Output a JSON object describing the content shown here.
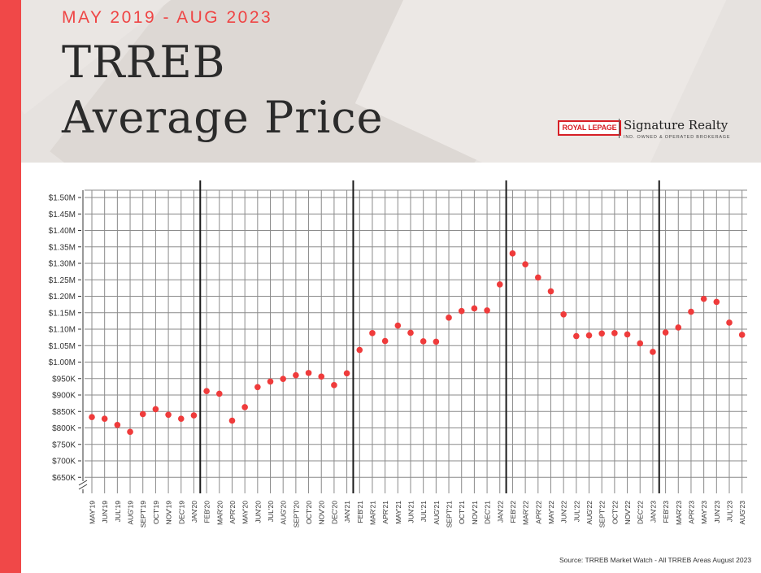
{
  "header": {
    "subtitle": "MAY 2019 - AUG 2023",
    "title_line1": "TRREB",
    "title_line2": "Average Price",
    "accent_color": "#ef4444"
  },
  "logo": {
    "brand_box": "ROYAL LEPAGE",
    "name": "Signature Realty",
    "tagline": "IND. OWNED & OPERATED BROKERAGE"
  },
  "source": "Source: TRREB Market Watch - All TRREB Areas August 2023",
  "chart_data": {
    "type": "scatter",
    "title": "TRREB Average Price",
    "subtitle": "MAY 2019 - AUG 2023",
    "y_ticks": [
      "$1.50M",
      "$1.45M",
      "$1.40M",
      "$1.35M",
      "$1.30M",
      "$1.25M",
      "$1.20M",
      "$1.15M",
      "$1.10M",
      "$1.05M",
      "$1.00M",
      "$950K",
      "$900K",
      "$850K",
      "$800K",
      "$750K",
      "$700K",
      "$650K"
    ],
    "ylim": [
      650000,
      1500000
    ],
    "axis_break": true,
    "grid": true,
    "point_color": "#ef3b3b",
    "year_dividers_after": [
      "JAN'20",
      "JAN'21",
      "JAN'22",
      "JAN'23"
    ],
    "categories": [
      "MAY'19",
      "JUN'19",
      "JUL'19",
      "AUG'19",
      "SEPT'19",
      "OCT'19",
      "NOV'19",
      "DEC'19",
      "JAN'20",
      "FEB'20",
      "MAR'20",
      "APR'20",
      "MAY'20",
      "JUN'20",
      "JUL'20",
      "AUG'20",
      "SEPT'20",
      "OCT'20",
      "NOV'20",
      "DEC'20",
      "JAN'21",
      "FEB'21",
      "MAR'21",
      "APR'21",
      "MAY'21",
      "JUN'21",
      "JUL'21",
      "AUG'21",
      "SEPT'21",
      "OCT'21",
      "NOV'21",
      "DEC'21",
      "JAN'22",
      "FEB'22",
      "MAR'22",
      "APR'22",
      "MAY'22",
      "JUN'22",
      "JUL'22",
      "AUG'22",
      "SEPT'22",
      "OCT'22",
      "NOV'22",
      "DEC'22",
      "JAN'23",
      "FEB'23",
      "MAR'23",
      "APR'23",
      "MAY'23",
      "JUN'23",
      "JUL'23",
      "AUG'23"
    ],
    "values": [
      833000,
      828000,
      809000,
      788000,
      842000,
      857000,
      840000,
      828000,
      838000,
      912000,
      904000,
      822000,
      863000,
      924000,
      941000,
      949000,
      960000,
      967000,
      956000,
      930000,
      966000,
      1037000,
      1088000,
      1064000,
      1111000,
      1089000,
      1063000,
      1062000,
      1135000,
      1155000,
      1163000,
      1157000,
      1236000,
      1330000,
      1297000,
      1257000,
      1215000,
      1145000,
      1079000,
      1081000,
      1087000,
      1088000,
      1084000,
      1057000,
      1031000,
      1090000,
      1105000,
      1153000,
      1192000,
      1183000,
      1120000,
      1083000
    ]
  }
}
